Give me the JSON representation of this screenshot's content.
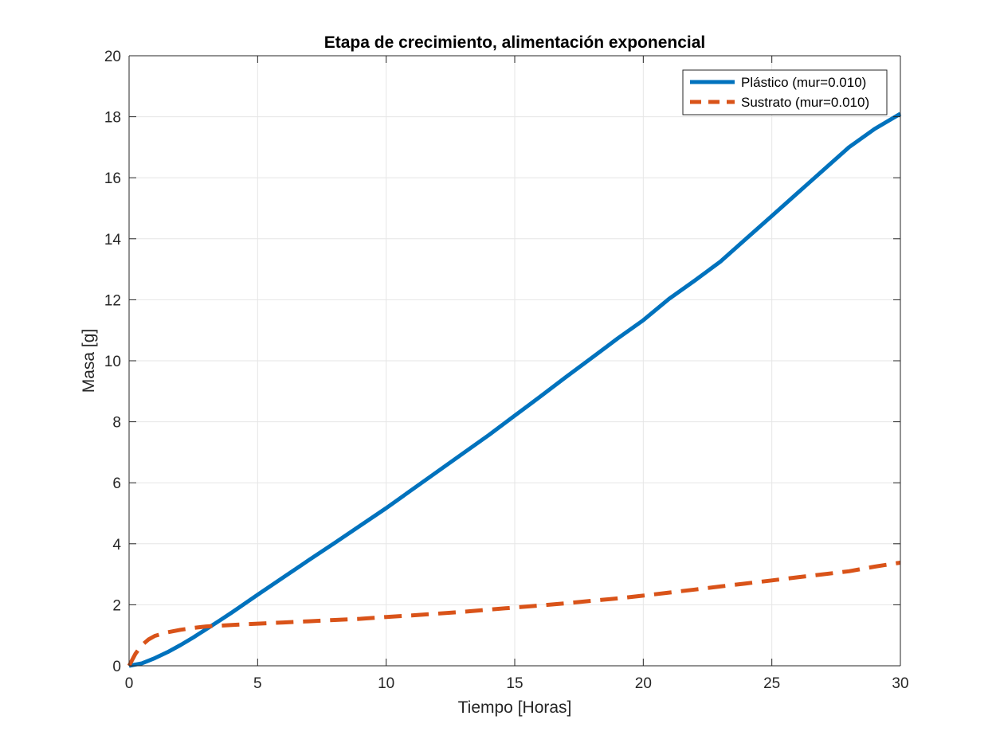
{
  "chart_data": {
    "type": "line",
    "title": "Etapa de crecimiento, alimentación exponencial",
    "xlabel": "Tiempo [Horas]",
    "ylabel": "Masa [g]",
    "xlim": [
      0,
      30
    ],
    "ylim": [
      0,
      20
    ],
    "xticks": [
      0,
      5,
      10,
      15,
      20,
      25,
      30
    ],
    "yticks": [
      0,
      2,
      4,
      6,
      8,
      10,
      12,
      14,
      16,
      18,
      20
    ],
    "xtick_labels": [
      "0",
      "5",
      "10",
      "15",
      "20",
      "25",
      "30"
    ],
    "ytick_labels": [
      "0",
      "2",
      "4",
      "6",
      "8",
      "10",
      "12",
      "14",
      "16",
      "18",
      "20"
    ],
    "grid": true,
    "legend_position": "top-right",
    "series": [
      {
        "name": "Plástico (mur=0.010)",
        "color": "#0072BD",
        "style": "solid",
        "x": [
          0,
          0.5,
          1,
          1.5,
          2,
          2.5,
          3,
          3.5,
          4,
          5,
          6,
          7,
          8,
          9,
          10,
          11,
          12,
          13,
          14,
          15,
          16,
          17,
          18,
          19,
          20,
          21,
          22,
          23,
          24,
          25,
          26,
          27,
          28,
          29,
          30
        ],
        "y": [
          0,
          0.08,
          0.25,
          0.45,
          0.68,
          0.93,
          1.2,
          1.47,
          1.75,
          2.33,
          2.9,
          3.47,
          4.03,
          4.6,
          5.17,
          5.77,
          6.37,
          6.97,
          7.57,
          8.2,
          8.83,
          9.47,
          10.1,
          10.73,
          11.33,
          12.03,
          12.63,
          13.25,
          14.0,
          14.75,
          15.5,
          16.25,
          17.0,
          17.6,
          18.1
        ]
      },
      {
        "name": "Sustrato (mur=0.010)",
        "color": "#D95319",
        "style": "dashed",
        "x": [
          0,
          0.25,
          0.5,
          0.75,
          1,
          1.5,
          2,
          2.5,
          3,
          4,
          5,
          6,
          7,
          8,
          9,
          10,
          11,
          12,
          13,
          14,
          15,
          16,
          17,
          18,
          19,
          20,
          21,
          22,
          23,
          24,
          25,
          26,
          27,
          28,
          29,
          30
        ],
        "y": [
          0,
          0.4,
          0.68,
          0.86,
          0.98,
          1.1,
          1.18,
          1.24,
          1.29,
          1.34,
          1.38,
          1.42,
          1.46,
          1.5,
          1.54,
          1.6,
          1.65,
          1.71,
          1.77,
          1.84,
          1.91,
          1.98,
          2.05,
          2.13,
          2.21,
          2.3,
          2.4,
          2.5,
          2.6,
          2.7,
          2.8,
          2.9,
          3.0,
          3.1,
          3.25,
          3.38
        ]
      }
    ]
  }
}
